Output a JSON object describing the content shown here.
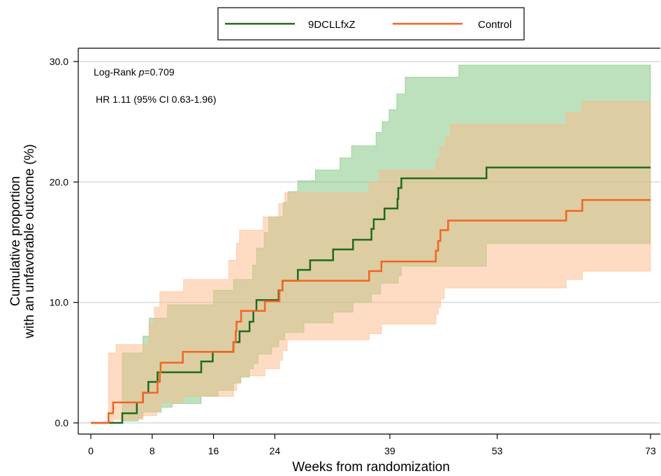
{
  "chart_data": {
    "type": "line",
    "subtype": "kaplan-meier-cumulative-incidence-step",
    "xlabel": "Weeks from randomization",
    "ylabel_line1": "Cumulative proportion",
    "ylabel_line2": "with an unfavorable outcome (%)",
    "xticks": [
      0,
      8,
      16,
      24,
      39,
      53,
      73
    ],
    "yticks": [
      0,
      10,
      20,
      30
    ],
    "ytick_labels": [
      "0.0",
      "10.0",
      "20.0",
      "30.0"
    ],
    "xlim": [
      0,
      73
    ],
    "ylim": [
      0,
      30
    ],
    "grid": "horizontal",
    "legend_position": "top-center",
    "annotations": {
      "logrank_prefix": "Log-Rank ",
      "logrank_p": "p",
      "logrank_value": "=0.709",
      "hr": "HR 1.11 (95% CI 0.63-1.96)"
    },
    "series": [
      {
        "name": "9DCLLfxZ",
        "color": "#1e6b1e",
        "band_color": "#7cc47c",
        "steps": [
          [
            0,
            0
          ],
          [
            4.1,
            0
          ],
          [
            4.1,
            0.8
          ],
          [
            6,
            0.8
          ],
          [
            6,
            1.7
          ],
          [
            6.8,
            1.7
          ],
          [
            6.8,
            2.5
          ],
          [
            7.5,
            2.5
          ],
          [
            7.5,
            3.4
          ],
          [
            8.7,
            3.4
          ],
          [
            8.7,
            4.2
          ],
          [
            14.4,
            4.2
          ],
          [
            14.4,
            5.1
          ],
          [
            15.9,
            5.1
          ],
          [
            15.9,
            5.9
          ],
          [
            18.6,
            5.9
          ],
          [
            18.6,
            6.7
          ],
          [
            19.4,
            6.7
          ],
          [
            19.4,
            7.6
          ],
          [
            20.7,
            7.6
          ],
          [
            20.7,
            8.4
          ],
          [
            21.2,
            8.4
          ],
          [
            21.2,
            9.3
          ],
          [
            21.6,
            9.3
          ],
          [
            21.6,
            10.2
          ],
          [
            24.5,
            10.2
          ],
          [
            24.5,
            11
          ],
          [
            25,
            11
          ],
          [
            25,
            11.8
          ],
          [
            27,
            11.8
          ],
          [
            27,
            12.7
          ],
          [
            28.6,
            12.7
          ],
          [
            28.6,
            13.5
          ],
          [
            31.6,
            13.5
          ],
          [
            31.6,
            14.4
          ],
          [
            34.2,
            14.4
          ],
          [
            34.2,
            15.2
          ],
          [
            36.6,
            15.2
          ],
          [
            36.6,
            16.1
          ],
          [
            36.9,
            16.1
          ],
          [
            36.9,
            16.9
          ],
          [
            38.3,
            16.9
          ],
          [
            38.3,
            17.8
          ],
          [
            40,
            17.8
          ],
          [
            40,
            18.6
          ],
          [
            40.1,
            18.6
          ],
          [
            40.1,
            19.5
          ],
          [
            40.5,
            19.5
          ],
          [
            40.5,
            20.3
          ],
          [
            51.6,
            20.3
          ],
          [
            51.6,
            21.2
          ],
          [
            73,
            21.2
          ]
        ],
        "ci_upper": [
          [
            0,
            0
          ],
          [
            4.1,
            0
          ],
          [
            4.1,
            5.8
          ],
          [
            6.8,
            5.8
          ],
          [
            6.8,
            7.2
          ],
          [
            7.6,
            7.2
          ],
          [
            7.6,
            8.7
          ],
          [
            10,
            8.7
          ],
          [
            10,
            9.8
          ],
          [
            16,
            9.8
          ],
          [
            16,
            11
          ],
          [
            18.6,
            11
          ],
          [
            18.6,
            11.9
          ],
          [
            21.1,
            11.9
          ],
          [
            21.1,
            13.1
          ],
          [
            21.6,
            13.1
          ],
          [
            21.6,
            14.5
          ],
          [
            22.6,
            14.5
          ],
          [
            22.6,
            15.8
          ],
          [
            23.2,
            15.8
          ],
          [
            23.2,
            17.1
          ],
          [
            25.1,
            17.1
          ],
          [
            25.1,
            18.3
          ],
          [
            25.7,
            18.3
          ],
          [
            25.7,
            19.2
          ],
          [
            27,
            19.2
          ],
          [
            27,
            20.1
          ],
          [
            29.3,
            20.1
          ],
          [
            29.3,
            21
          ],
          [
            32.5,
            21
          ],
          [
            32.5,
            22
          ],
          [
            34,
            22
          ],
          [
            34,
            23
          ],
          [
            37.2,
            23
          ],
          [
            37.2,
            24.1
          ],
          [
            38,
            24.1
          ],
          [
            38,
            25
          ],
          [
            38.9,
            25
          ],
          [
            38.9,
            26
          ],
          [
            39.9,
            26
          ],
          [
            39.9,
            27.3
          ],
          [
            41,
            27.3
          ],
          [
            41,
            28.7
          ],
          [
            48,
            28.7
          ],
          [
            48,
            29.7
          ],
          [
            73,
            29.7
          ]
        ],
        "ci_lower": [
          [
            0,
            0
          ],
          [
            4.1,
            0
          ],
          [
            4.1,
            0.15
          ],
          [
            6.2,
            0.15
          ],
          [
            6.2,
            0.4
          ],
          [
            6.8,
            0.4
          ],
          [
            6.8,
            0.9
          ],
          [
            9.2,
            0.9
          ],
          [
            9.2,
            1.3
          ],
          [
            10.6,
            1.3
          ],
          [
            10.6,
            1.6
          ],
          [
            14.4,
            1.6
          ],
          [
            14.4,
            2.2
          ],
          [
            16.6,
            2.2
          ],
          [
            16.6,
            2.7
          ],
          [
            18.6,
            2.7
          ],
          [
            18.6,
            3.3
          ],
          [
            19.5,
            3.3
          ],
          [
            19.5,
            3.8
          ],
          [
            20.7,
            3.8
          ],
          [
            20.7,
            4.5
          ],
          [
            21.2,
            4.5
          ],
          [
            21.2,
            4.9
          ],
          [
            21.8,
            4.9
          ],
          [
            21.8,
            5.7
          ],
          [
            23.6,
            5.7
          ],
          [
            23.6,
            6.3
          ],
          [
            24.5,
            6.3
          ],
          [
            24.5,
            6.9
          ],
          [
            25.3,
            6.9
          ],
          [
            25.3,
            7.5
          ],
          [
            27.8,
            7.5
          ],
          [
            27.8,
            8.3
          ],
          [
            31.6,
            8.3
          ],
          [
            31.6,
            9.2
          ],
          [
            34.2,
            9.2
          ],
          [
            34.2,
            10
          ],
          [
            36.6,
            10
          ],
          [
            36.6,
            10.7
          ],
          [
            37.8,
            10.7
          ],
          [
            37.8,
            11.6
          ],
          [
            40.1,
            11.6
          ],
          [
            40.1,
            12.2
          ],
          [
            40.5,
            12.2
          ],
          [
            40.5,
            13
          ],
          [
            51.6,
            13
          ],
          [
            51.6,
            14.9
          ],
          [
            73,
            14.9
          ]
        ]
      },
      {
        "name": "Control",
        "color": "#f26522",
        "band_color": "#fdb98a",
        "steps": [
          [
            0,
            0
          ],
          [
            2.3,
            0
          ],
          [
            2.3,
            0.8
          ],
          [
            2.9,
            0.8
          ],
          [
            2.9,
            1.7
          ],
          [
            6.8,
            1.7
          ],
          [
            6.8,
            2.5
          ],
          [
            8.7,
            2.5
          ],
          [
            8.7,
            3.4
          ],
          [
            9,
            3.4
          ],
          [
            9,
            4.2
          ],
          [
            9.1,
            4.2
          ],
          [
            9.1,
            5
          ],
          [
            12,
            5
          ],
          [
            12,
            5.9
          ],
          [
            18.6,
            5.9
          ],
          [
            18.6,
            6.7
          ],
          [
            18.9,
            6.7
          ],
          [
            18.9,
            7.6
          ],
          [
            19,
            7.6
          ],
          [
            19,
            8.4
          ],
          [
            19.6,
            8.4
          ],
          [
            19.6,
            9.3
          ],
          [
            22.7,
            9.3
          ],
          [
            22.7,
            10.1
          ],
          [
            24.6,
            10.1
          ],
          [
            24.6,
            11
          ],
          [
            25,
            11
          ],
          [
            25,
            11.8
          ],
          [
            36.3,
            11.8
          ],
          [
            36.3,
            12.6
          ],
          [
            37.9,
            12.6
          ],
          [
            37.9,
            13.4
          ],
          [
            45,
            13.4
          ],
          [
            45,
            14.3
          ],
          [
            45.3,
            14.3
          ],
          [
            45.3,
            15.1
          ],
          [
            45.6,
            15.1
          ],
          [
            45.6,
            16
          ],
          [
            46.6,
            16
          ],
          [
            46.6,
            16.8
          ],
          [
            62,
            16.8
          ],
          [
            62,
            17.6
          ],
          [
            64.1,
            17.6
          ],
          [
            64.1,
            18.5
          ],
          [
            73,
            18.5
          ]
        ],
        "ci_upper": [
          [
            0,
            0
          ],
          [
            2.3,
            0
          ],
          [
            2.3,
            5.8
          ],
          [
            3.3,
            5.8
          ],
          [
            3.3,
            6.5
          ],
          [
            7.6,
            6.5
          ],
          [
            7.6,
            8.3
          ],
          [
            8.3,
            8.3
          ],
          [
            8.3,
            9.6
          ],
          [
            9,
            9.6
          ],
          [
            9,
            10.9
          ],
          [
            12.1,
            10.9
          ],
          [
            12.1,
            11.9
          ],
          [
            18,
            11.9
          ],
          [
            18,
            13.5
          ],
          [
            19,
            13.5
          ],
          [
            19,
            14.9
          ],
          [
            19.4,
            14.9
          ],
          [
            19.4,
            16
          ],
          [
            22.5,
            16
          ],
          [
            22.5,
            17.1
          ],
          [
            24.5,
            17.1
          ],
          [
            24.5,
            18.2
          ],
          [
            25.3,
            18.2
          ],
          [
            25.3,
            19.1
          ],
          [
            36.3,
            19.1
          ],
          [
            36.3,
            20
          ],
          [
            37.6,
            20
          ],
          [
            37.6,
            21
          ],
          [
            45,
            21
          ],
          [
            45,
            21.9
          ],
          [
            45.5,
            21.9
          ],
          [
            45.5,
            22.9
          ],
          [
            46.3,
            22.9
          ],
          [
            46.3,
            23.8
          ],
          [
            46.9,
            23.8
          ],
          [
            46.9,
            24.8
          ],
          [
            62,
            24.8
          ],
          [
            62,
            25.8
          ],
          [
            64.1,
            25.8
          ],
          [
            64.1,
            26.7
          ],
          [
            73,
            26.7
          ]
        ],
        "ci_lower": [
          [
            0,
            0
          ],
          [
            2.3,
            0
          ],
          [
            2.3,
            0.1
          ],
          [
            2.9,
            0.1
          ],
          [
            2.9,
            0.3
          ],
          [
            6.8,
            0.3
          ],
          [
            6.8,
            0.6
          ],
          [
            8.6,
            0.6
          ],
          [
            8.6,
            0.9
          ],
          [
            9,
            0.9
          ],
          [
            9,
            1.3
          ],
          [
            9.1,
            1.3
          ],
          [
            9.1,
            1.7
          ],
          [
            12,
            1.7
          ],
          [
            12,
            2.2
          ],
          [
            18.6,
            2.2
          ],
          [
            18.6,
            2.7
          ],
          [
            19,
            2.7
          ],
          [
            19,
            3.3
          ],
          [
            19.6,
            3.3
          ],
          [
            19.6,
            3.9
          ],
          [
            22.7,
            3.9
          ],
          [
            22.7,
            4.5
          ],
          [
            24.6,
            4.5
          ],
          [
            24.6,
            5.2
          ],
          [
            25,
            5.2
          ],
          [
            25,
            6
          ],
          [
            25.6,
            6
          ],
          [
            25.6,
            6.9
          ],
          [
            36.3,
            6.9
          ],
          [
            36.3,
            7.4
          ],
          [
            37.9,
            7.4
          ],
          [
            37.9,
            8.2
          ],
          [
            45,
            8.2
          ],
          [
            45,
            9
          ],
          [
            45.3,
            9
          ],
          [
            45.3,
            9.6
          ],
          [
            45.6,
            9.6
          ],
          [
            45.6,
            10.3
          ],
          [
            46.1,
            10.3
          ],
          [
            46.1,
            11.2
          ],
          [
            62,
            11.2
          ],
          [
            62,
            11.9
          ],
          [
            64.1,
            11.9
          ],
          [
            64.1,
            12.6
          ],
          [
            73,
            12.6
          ]
        ]
      }
    ]
  }
}
